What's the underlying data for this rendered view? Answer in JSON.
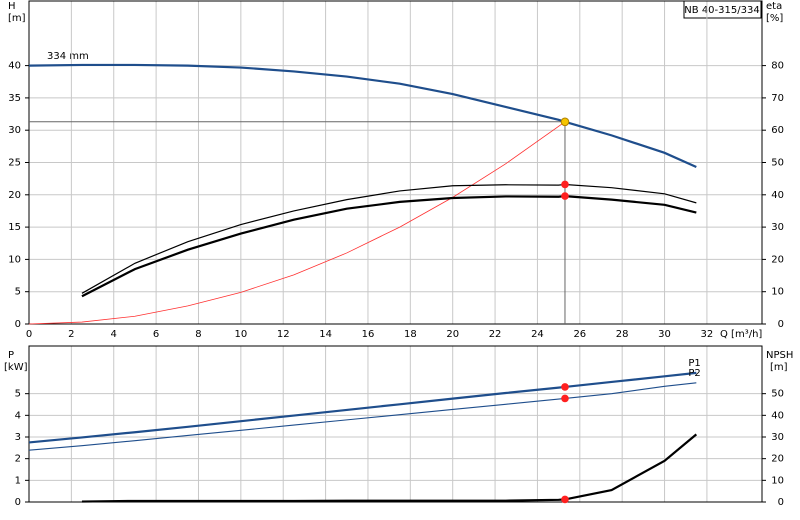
{
  "chart_data": [
    {
      "type": "line",
      "legend_title": "NB 40-315/334",
      "annotation": "334 mm",
      "ylabel": "H",
      "yunit": "[m]",
      "y2label": "eta",
      "y2unit": "[%]",
      "xlabel": "Q [m³/h]",
      "x": [
        0,
        2.5,
        5,
        7.5,
        10,
        12.5,
        15,
        17.5,
        20,
        22.5,
        25,
        25.3,
        27.5,
        30,
        31.5
      ],
      "xlim": [
        0,
        34.6
      ],
      "xticks": [
        0,
        2,
        4,
        6,
        8,
        10,
        12,
        14,
        16,
        18,
        20,
        22,
        24,
        26,
        28,
        30,
        32
      ],
      "ylim": [
        0,
        50
      ],
      "yticks": [
        0,
        5,
        10,
        15,
        20,
        25,
        30,
        35,
        40
      ],
      "y2lim": [
        0,
        100
      ],
      "y2ticks": [
        0,
        10,
        20,
        30,
        40,
        50,
        60,
        70,
        80
      ],
      "grid": true,
      "duty_index": 11,
      "series": [
        {
          "color": "#1f4e8c",
          "line_width": 2.2,
          "marker_color": "#f5c400",
          "crosshair": true,
          "values": [
            40,
            40.1,
            40.1,
            40,
            39.7,
            39.1,
            38.3,
            37.2,
            35.6,
            33.6,
            31.6,
            31.3,
            29.2,
            26.5,
            24.3
          ]
        },
        {
          "color": "#ff3030",
          "line_width": 0.8,
          "values": [
            0,
            0.3,
            1.2,
            2.8,
            4.9,
            7.6,
            11,
            15,
            19.6,
            24.8,
            30.6,
            31.3,
            null,
            null,
            null
          ]
        },
        {
          "color": "#000000",
          "line_width": 1.2,
          "axis": "y2",
          "marker_color": "#ff2020",
          "values": [
            null,
            9.5,
            18.8,
            25.5,
            30.8,
            35,
            38.5,
            41.2,
            42.8,
            43.1,
            43,
            43.2,
            42.2,
            40.3,
            37.5
          ]
        },
        {
          "color": "#000000",
          "line_width": 2.2,
          "axis": "y2",
          "marker_color": "#ff2020",
          "values": [
            null,
            8.6,
            17,
            23,
            28,
            32.3,
            35.7,
            37.8,
            39,
            39.5,
            39.4,
            39.6,
            38.5,
            36.9,
            34.5
          ]
        }
      ]
    },
    {
      "type": "line",
      "ylabel": "P",
      "yunit": "[kW]",
      "y2label": "NPSH",
      "y2unit": "[m]",
      "x": [
        0,
        2.5,
        5,
        7.5,
        10,
        12.5,
        15,
        17.5,
        20,
        22.5,
        25,
        25.3,
        27.5,
        30,
        31.5
      ],
      "xlim": [
        0,
        34.6
      ],
      "ylim": [
        0,
        7.2
      ],
      "yticks": [
        0,
        1,
        2,
        3,
        4,
        5
      ],
      "y2lim": [
        0,
        72
      ],
      "y2ticks": [
        0,
        10,
        20,
        30,
        40,
        50
      ],
      "grid": true,
      "duty_index": 11,
      "series": [
        {
          "name": "P1",
          "color": "#1f4e8c",
          "line_width": 2.2,
          "marker_color": "#ff2020",
          "values": [
            2.75,
            2.98,
            3.22,
            3.47,
            3.73,
            3.99,
            4.25,
            4.51,
            4.77,
            5.03,
            5.28,
            5.31,
            5.54,
            5.8,
            5.96
          ]
        },
        {
          "name": "P2",
          "color": "#1f4e8c",
          "line_width": 1.1,
          "marker_color": "#ff2020",
          "values": [
            2.39,
            2.6,
            2.83,
            3.07,
            3.31,
            3.55,
            3.79,
            4.03,
            4.27,
            4.51,
            4.75,
            4.78,
            5.0,
            5.34,
            5.5
          ]
        },
        {
          "color": "#000000",
          "line_width": 2.2,
          "axis": "y2",
          "marker_color": "#ff2020",
          "values": [
            null,
            0.2,
            0.5,
            0.5,
            0.5,
            0.5,
            0.6,
            0.6,
            0.6,
            0.6,
            1.0,
            1.2,
            5.5,
            19,
            31.2
          ]
        }
      ]
    }
  ]
}
